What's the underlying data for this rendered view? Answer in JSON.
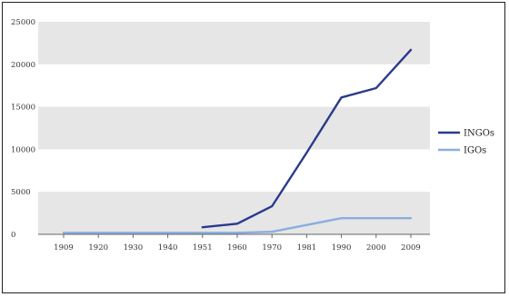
{
  "chart_data": {
    "type": "line",
    "x": [
      "1909",
      "1920",
      "1930",
      "1940",
      "1951",
      "1960",
      "1970",
      "1981",
      "1990",
      "2000",
      "2009"
    ],
    "series": [
      {
        "name": "INGOs",
        "color": "#2a3a8c",
        "values": [
          null,
          null,
          null,
          null,
          830,
          1250,
          3300,
          9600,
          16100,
          17200,
          21700
        ]
      },
      {
        "name": "IGOs",
        "color": "#8aaee0",
        "values": [
          180,
          180,
          180,
          180,
          180,
          180,
          300,
          1100,
          1900,
          1900,
          1900
        ]
      }
    ],
    "yticks": [
      "0",
      "5000",
      "10000",
      "15000",
      "20000",
      "25000"
    ],
    "ylim": [
      0,
      25000
    ],
    "grid": "alternating horizontal bands",
    "legend_position": "right"
  }
}
